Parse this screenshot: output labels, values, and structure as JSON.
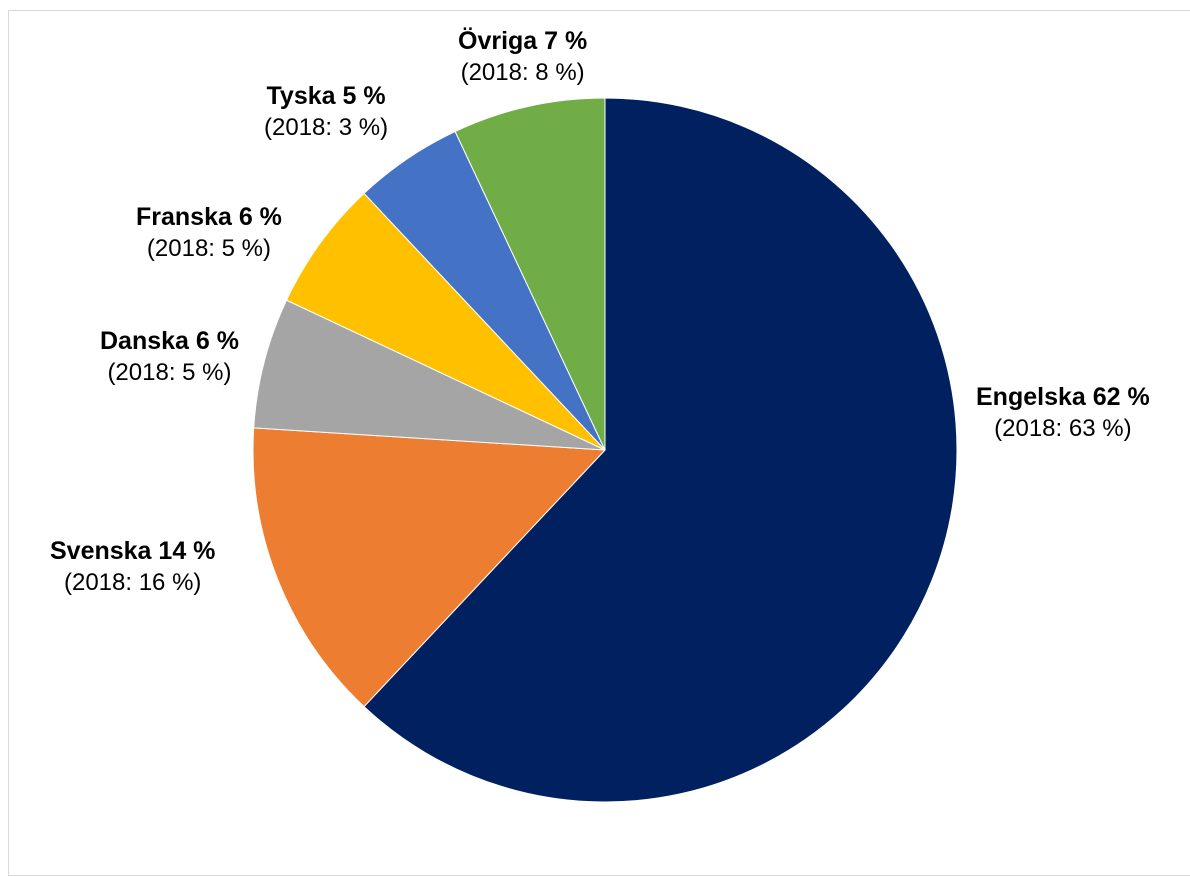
{
  "chart_data": {
    "type": "pie",
    "start": "top",
    "direction": "clockwise",
    "slices": [
      {
        "name": "Engelska",
        "name_text": "Engelska  62 %",
        "value": 62,
        "prev_text": "(2018: 63 %)",
        "prev_value": 63,
        "color": "#002060"
      },
      {
        "name": "Svenska",
        "name_text": "Svenska 14 %",
        "value": 14,
        "prev_text": "(2018: 16 %)",
        "prev_value": 16,
        "color": "#ED7D31"
      },
      {
        "name": "Danska",
        "name_text": "Danska 6 %",
        "value": 6,
        "prev_text": "(2018: 5 %)",
        "prev_value": 5,
        "color": "#A5A5A5"
      },
      {
        "name": "Franska",
        "name_text": "Franska 6 %",
        "value": 6,
        "prev_text": "(2018: 5 %)",
        "prev_value": 5,
        "color": "#FFC000"
      },
      {
        "name": "Tyska",
        "name_text": "Tyska 5 %",
        "value": 5,
        "prev_text": "(2018: 3 %)",
        "prev_value": 3,
        "color": "#4472C4"
      },
      {
        "name": "Övriga",
        "name_text": "Övriga 7 %",
        "value": 7,
        "prev_text": "(2018: 8 %)",
        "prev_value": 8,
        "color": "#70AD47"
      }
    ]
  }
}
